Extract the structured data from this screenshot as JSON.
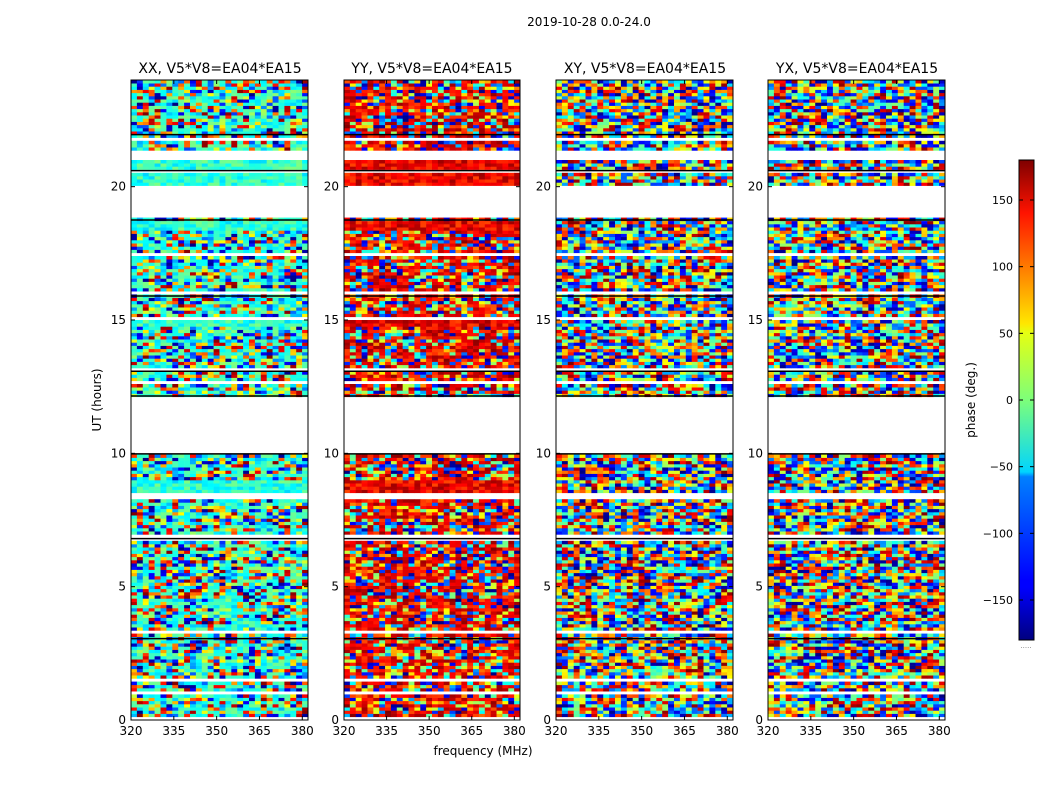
{
  "figure_title": "2019-10-28 0.0-24.0",
  "colors": {
    "axis": "#000000",
    "background": "#ffffff",
    "colormap": "jet"
  },
  "chart_data": {
    "type": "heatmap",
    "suptitle": "2019-10-28 0.0-24.0",
    "xlabel": "frequency (MHz)",
    "ylabel": "UT (hours)",
    "xlim": [
      320,
      382
    ],
    "ylim": [
      0,
      24
    ],
    "x_ticks": [
      "320",
      "335",
      "350",
      "365",
      "380"
    ],
    "x_tick_values": [
      320,
      335,
      350,
      365,
      380
    ],
    "y_ticks": [
      "0",
      "5",
      "10",
      "15",
      "20"
    ],
    "y_tick_values": [
      0,
      5,
      10,
      15,
      20
    ],
    "colorbar": {
      "label": "phase (deg.)",
      "range": [
        -180,
        180
      ],
      "ticks": [
        "−150",
        "−100",
        "−50",
        "0",
        "50",
        "100",
        "150"
      ],
      "tick_values": [
        -150,
        -100,
        -50,
        0,
        50,
        100,
        150
      ],
      "bottom_text": "....."
    },
    "panels": [
      {
        "title": "XX, V5*V8=EA04*EA15",
        "base_phase": -30,
        "coherence": 0.7
      },
      {
        "title": "YY, V5*V8=EA04*EA15",
        "base_phase": 140,
        "coherence": 0.75
      },
      {
        "title": "XY, V5*V8=EA04*EA15",
        "base_phase": 0,
        "coherence": 0.0
      },
      {
        "title": "YX, V5*V8=EA04*EA15",
        "base_phase": 0,
        "coherence": 0.0
      }
    ],
    "blank_ut_ranges": [
      [
        0.05,
        0.12
      ],
      [
        0.55,
        0.6
      ],
      [
        1.0,
        1.05
      ],
      [
        1.4,
        1.55
      ],
      [
        3.2,
        3.35
      ],
      [
        6.75,
        6.9
      ],
      [
        8.3,
        8.5
      ],
      [
        9.95,
        12.15
      ],
      [
        12.6,
        12.68
      ],
      [
        13.05,
        13.15
      ],
      [
        15.05,
        15.12
      ],
      [
        15.95,
        16.05
      ],
      [
        17.35,
        17.5
      ],
      [
        18.8,
        20.05
      ],
      [
        20.55,
        20.6
      ],
      [
        21.0,
        21.3
      ],
      [
        21.7,
        21.78
      ],
      [
        22.15,
        22.2
      ]
    ],
    "black_line_ut": [
      3.05,
      6.8,
      9.98,
      12.15,
      13.08,
      15.9,
      18.75,
      20.6,
      21.95
    ]
  }
}
